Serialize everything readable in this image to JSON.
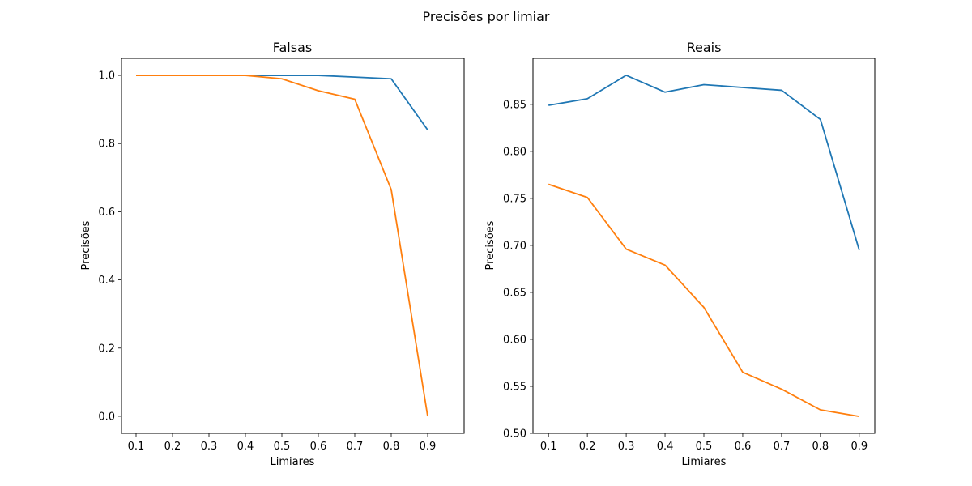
{
  "figure": {
    "suptitle": "Precisões por limiar"
  },
  "chart_data": [
    {
      "type": "line",
      "title": "Falsas",
      "xlabel": "Limiares",
      "ylabel": "Precisões",
      "x": [
        0.1,
        0.2,
        0.3,
        0.4,
        0.5,
        0.6,
        0.7,
        0.8,
        0.9
      ],
      "xlim": [
        0.06,
        1.0
      ],
      "ylim": [
        -0.05,
        1.05
      ],
      "xticks": [
        "0.1",
        "0.2",
        "0.3",
        "0.4",
        "0.5",
        "0.6",
        "0.7",
        "0.8",
        "0.9"
      ],
      "yticks": [
        0.0,
        0.2,
        0.4,
        0.6,
        0.8,
        1.0
      ],
      "ytick_labels": [
        "0.0",
        "0.2",
        "0.4",
        "0.6",
        "0.8",
        "1.0"
      ],
      "grid": false,
      "series": [
        {
          "color": "#1f77b4",
          "values": [
            1.0,
            1.0,
            1.0,
            1.0,
            1.0,
            1.0,
            0.995,
            0.99,
            0.84
          ]
        },
        {
          "color": "#ff7f0e",
          "values": [
            1.0,
            1.0,
            1.0,
            1.0,
            0.99,
            0.955,
            0.93,
            0.665,
            0.0
          ]
        }
      ]
    },
    {
      "type": "line",
      "title": "Reais",
      "xlabel": "Limiares",
      "ylabel": "Precisões",
      "x": [
        0.1,
        0.2,
        0.3,
        0.4,
        0.5,
        0.6,
        0.7,
        0.8,
        0.9
      ],
      "xlim": [
        0.06,
        0.94
      ],
      "ylim": [
        0.5,
        0.899
      ],
      "xticks": [
        "0.1",
        "0.2",
        "0.3",
        "0.4",
        "0.5",
        "0.6",
        "0.7",
        "0.8",
        "0.9"
      ],
      "yticks": [
        0.5,
        0.55,
        0.6,
        0.65,
        0.7,
        0.75,
        0.8,
        0.85
      ],
      "ytick_labels": [
        "0.50",
        "0.55",
        "0.60",
        "0.65",
        "0.70",
        "0.75",
        "0.80",
        "0.85"
      ],
      "grid": false,
      "series": [
        {
          "color": "#1f77b4",
          "values": [
            0.849,
            0.856,
            0.881,
            0.863,
            0.871,
            0.868,
            0.865,
            0.834,
            0.695
          ]
        },
        {
          "color": "#ff7f0e",
          "values": [
            0.765,
            0.751,
            0.696,
            0.679,
            0.634,
            0.565,
            0.547,
            0.525,
            0.518
          ]
        }
      ]
    }
  ]
}
